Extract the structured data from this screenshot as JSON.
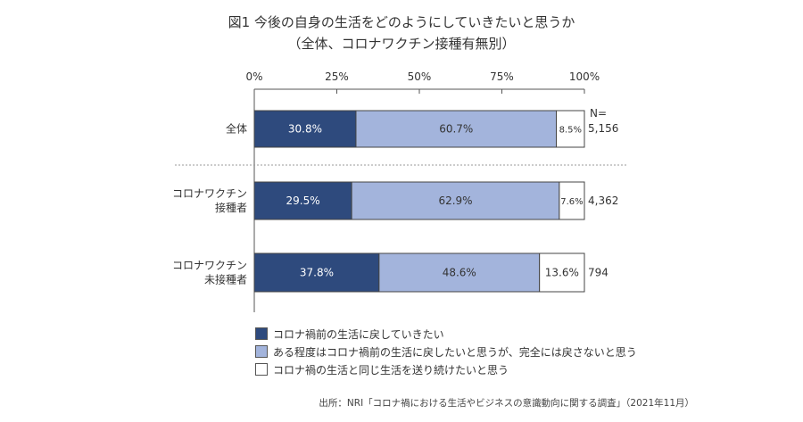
{
  "chart_data": {
    "type": "bar",
    "orientation": "horizontal",
    "stacked": true,
    "title": "図1 今後の自身の生活をどのようにしていきたいと思うか",
    "subtitle": "（全体、コロナワクチン接種有無別）",
    "xlim": [
      0,
      100
    ],
    "x_ticks": [
      "0%",
      "25%",
      "50%",
      "75%",
      "100%"
    ],
    "n_header": "N=",
    "categories": [
      {
        "lines": [
          "全体"
        ],
        "n": "5,156"
      },
      {
        "lines": [
          "コロナワクチン",
          "接種者"
        ],
        "n": "4,362"
      },
      {
        "lines": [
          "コロナワクチン",
          "未接種者"
        ],
        "n": "794"
      }
    ],
    "series": [
      {
        "name": "コロナ禍前の生活に戻していきたい",
        "color": "#2e4a7d",
        "label_color": "#ffffff",
        "values": [
          30.8,
          29.5,
          37.8
        ],
        "labels": [
          "30.8%",
          "29.5%",
          "37.8%"
        ]
      },
      {
        "name": "ある程度はコロナ禍前の生活に戻したいと思うが、完全には戻さないと思う",
        "color": "#a3b4dc",
        "label_color": "#333333",
        "values": [
          60.7,
          62.9,
          48.6
        ],
        "labels": [
          "60.7%",
          "62.9%",
          "48.6%"
        ]
      },
      {
        "name": "コロナ禍の生活と同じ生活を送り続けたいと思う",
        "color": "#ffffff",
        "label_color": "#333333",
        "values": [
          8.5,
          7.6,
          13.6
        ],
        "labels": [
          "8.5%",
          "7.6%",
          "13.6%"
        ]
      }
    ],
    "grid": false,
    "legend_position": "bottom"
  },
  "source": "出所：NRI「コロナ禍における生活やビジネスの意識動向に関する調査」（2021年11月）"
}
